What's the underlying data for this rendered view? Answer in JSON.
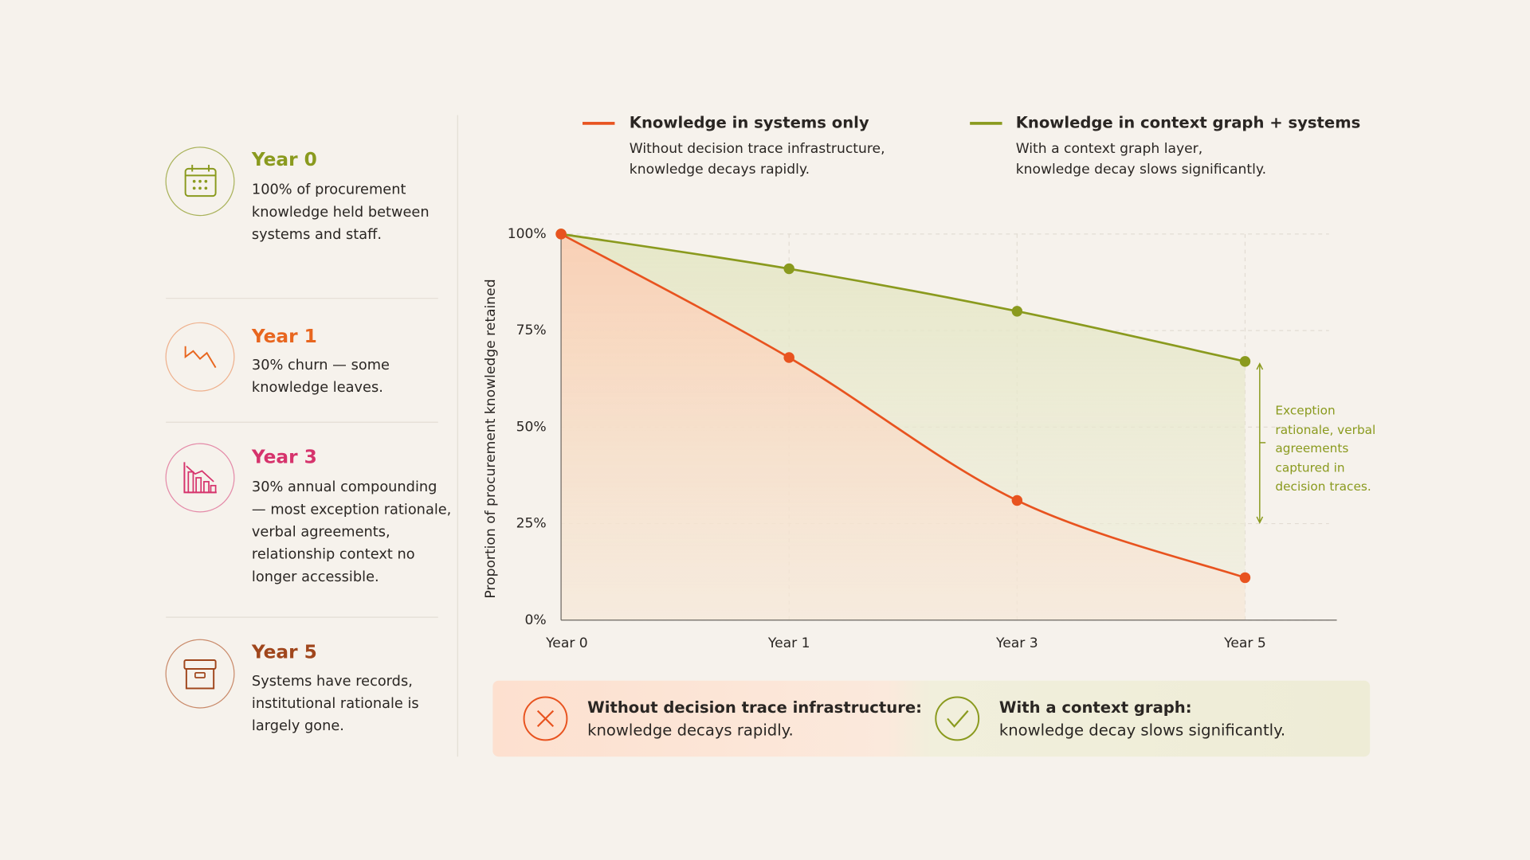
{
  "sidebar": [
    {
      "title": "Year 0",
      "text": "100% of procurement knowledge held between systems and staff."
    },
    {
      "title": "Year 1",
      "text": "30% churn — some knowledge leaves."
    },
    {
      "title": "Year 3",
      "text": "30% annual compounding — most exception rationale, verbal agreements, relationship context no longer accessible."
    },
    {
      "title": "Year 5",
      "text": "Systems have records, institutional rationale is largely gone."
    }
  ],
  "chart_data": {
    "type": "line",
    "y_label": "Proportion of procurement knowledge retained",
    "categories": [
      "Year 0",
      "Year 1",
      "Year 3",
      "Year 5"
    ],
    "series": [
      {
        "name": "Knowledge in systems only",
        "description": "Without decision trace infrastructure, knowledge decays rapidly.",
        "color": "#e8531f",
        "values": [
          100,
          68,
          31,
          11
        ]
      },
      {
        "name": "Knowledge in context graph + systems",
        "description": "With a context graph layer, knowledge decay slows significantly.",
        "color": "#8a9a1e",
        "values": [
          100,
          91,
          80,
          67
        ]
      }
    ],
    "ylim": [
      0,
      100
    ],
    "yticks": [
      {
        "value": 0,
        "label": "0%"
      },
      {
        "value": 25,
        "label": "25%"
      },
      {
        "value": 50,
        "label": "50%"
      },
      {
        "value": 75,
        "label": "75%"
      },
      {
        "value": 100,
        "label": "100%"
      }
    ],
    "grid": true,
    "annotation": "Exception rationale, verbal agreements captured in decision traces."
  },
  "summary": [
    {
      "title": "Without decision trace infrastructure:",
      "text": "knowledge decays rapidly."
    },
    {
      "title": "With a context graph:",
      "text": "knowledge decay slows significantly."
    }
  ]
}
